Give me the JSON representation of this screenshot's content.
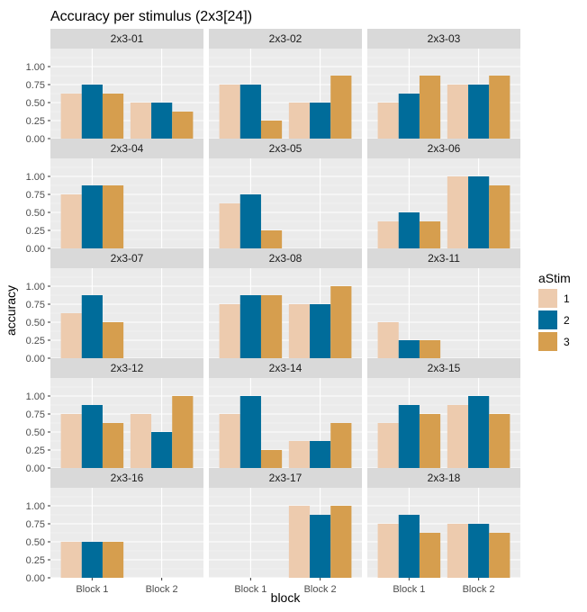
{
  "chart_data": {
    "type": "bar",
    "title": "Accuracy per stimulus (2x3[24])",
    "xlabel": "block",
    "ylabel": "accuracy",
    "ylim": [
      0,
      1.25
    ],
    "y_ticks": [
      0,
      0.25,
      0.5,
      0.75,
      1
    ],
    "y_tick_labels": [
      "0.00",
      "0.25",
      "0.50",
      "0.75",
      "1.00"
    ],
    "categories": [
      "Block 1",
      "Block 2"
    ],
    "grid": true,
    "legend": {
      "title": "aStim",
      "position": "right",
      "items": [
        {
          "label": "1",
          "color": "#EDCBAE"
        },
        {
          "label": "2",
          "color": "#006C9A"
        },
        {
          "label": "3",
          "color": "#D69E4E"
        }
      ]
    },
    "panels": [
      {
        "label": "2x3-01",
        "blocks": [
          [
            0.625,
            0.75,
            0.625
          ],
          [
            0.5,
            0.5,
            0.375
          ]
        ]
      },
      {
        "label": "2x3-02",
        "blocks": [
          [
            0.75,
            0.75,
            0.25
          ],
          [
            0.5,
            0.5,
            0.875
          ]
        ]
      },
      {
        "label": "2x3-03",
        "blocks": [
          [
            0.5,
            0.625,
            0.875
          ],
          [
            0.75,
            0.75,
            0.875
          ]
        ]
      },
      {
        "label": "2x3-04",
        "blocks": [
          [
            0.75,
            0.875,
            0.875
          ],
          [
            null,
            null,
            null
          ]
        ]
      },
      {
        "label": "2x3-05",
        "blocks": [
          [
            0.625,
            0.75,
            0.25
          ],
          [
            null,
            null,
            null
          ]
        ]
      },
      {
        "label": "2x3-06",
        "blocks": [
          [
            0.375,
            0.5,
            0.375
          ],
          [
            1.0,
            1.0,
            0.875
          ]
        ]
      },
      {
        "label": "2x3-07",
        "blocks": [
          [
            0.625,
            0.875,
            0.5
          ],
          [
            null,
            null,
            null
          ]
        ]
      },
      {
        "label": "2x3-08",
        "blocks": [
          [
            0.75,
            0.875,
            0.875
          ],
          [
            0.75,
            0.75,
            1.0
          ]
        ]
      },
      {
        "label": "2x3-11",
        "blocks": [
          [
            0.5,
            0.25,
            0.25
          ],
          [
            null,
            null,
            null
          ]
        ]
      },
      {
        "label": "2x3-12",
        "blocks": [
          [
            0.75,
            0.875,
            0.625
          ],
          [
            0.75,
            0.5,
            1.0
          ]
        ]
      },
      {
        "label": "2x3-14",
        "blocks": [
          [
            0.75,
            1.0,
            0.25
          ],
          [
            0.375,
            0.375,
            0.625
          ]
        ]
      },
      {
        "label": "2x3-15",
        "blocks": [
          [
            0.625,
            0.875,
            0.75
          ],
          [
            0.875,
            1.0,
            0.75
          ]
        ]
      },
      {
        "label": "2x3-16",
        "blocks": [
          [
            0.5,
            0.5,
            0.5
          ],
          [
            null,
            null,
            null
          ]
        ]
      },
      {
        "label": "2x3-17",
        "blocks": [
          [
            null,
            null,
            null
          ],
          [
            1.0,
            0.875,
            1.0
          ]
        ]
      },
      {
        "label": "2x3-18",
        "blocks": [
          [
            0.75,
            0.875,
            0.625
          ],
          [
            0.75,
            0.75,
            0.625
          ]
        ]
      }
    ]
  }
}
